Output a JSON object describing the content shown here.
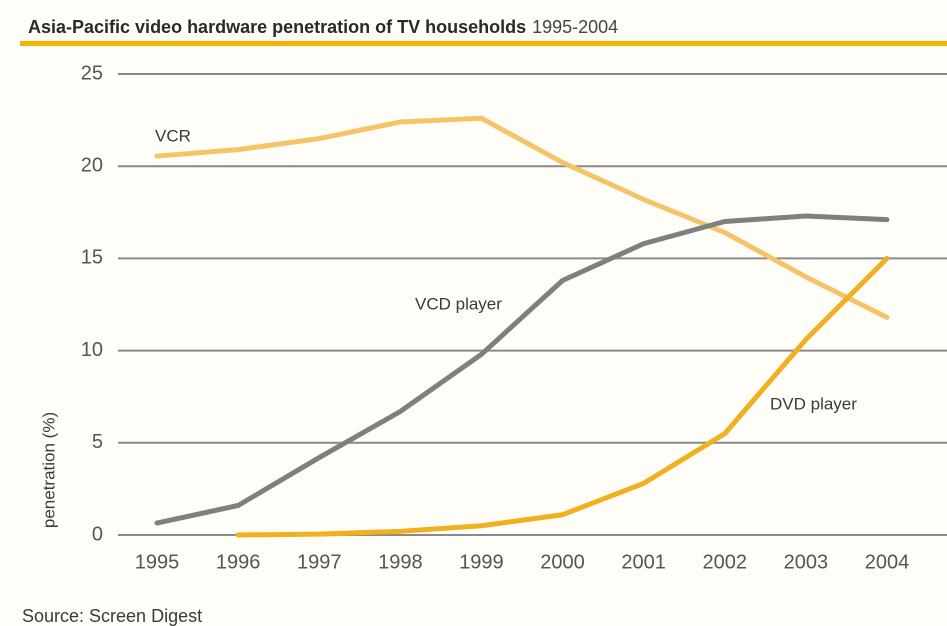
{
  "chart_data": {
    "type": "line",
    "title": "Asia-Pacific video hardware penetration of TV households",
    "subtitle": "1995-2004",
    "ylabel": "penetration (%)",
    "source": "Source: Screen Digest",
    "categories": [
      "1995",
      "1996",
      "1997",
      "1998",
      "1999",
      "2000",
      "2001",
      "2002",
      "2003",
      "2004"
    ],
    "series": [
      {
        "name": "VCR",
        "color": "#f6c468",
        "values": [
          20.55,
          20.9,
          21.5,
          22.4,
          22.6,
          20.2,
          18.2,
          16.4,
          14.0,
          11.8
        ]
      },
      {
        "name": "VCD player",
        "color": "#7f7f7f",
        "values": [
          0.65,
          1.6,
          4.2,
          6.7,
          9.8,
          13.8,
          15.8,
          17.0,
          17.3,
          17.1
        ]
      },
      {
        "name": "DVD player",
        "color": "#f0b020",
        "values": [
          null,
          0,
          0.05,
          0.2,
          0.5,
          1.1,
          2.8,
          5.5,
          10.6,
          15.0
        ]
      }
    ],
    "ylim": [
      0,
      25
    ],
    "yticks": [
      0,
      5,
      10,
      15,
      20,
      25
    ],
    "grid": true
  }
}
